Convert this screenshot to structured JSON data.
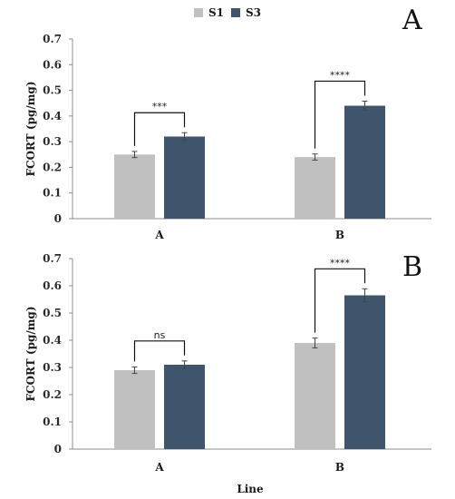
{
  "legend": {
    "items": [
      {
        "label": "S1",
        "color": "#c0c0c0"
      },
      {
        "label": "S3",
        "color": "#3f556c"
      }
    ]
  },
  "x_axis_title": "Line",
  "chart_data": [
    {
      "type": "bar",
      "panel_label": "A",
      "ylabel": "FCORT (pg/mg)",
      "xlabel": "",
      "ylim": [
        0,
        0.7
      ],
      "yticks": [
        "0",
        "0.1",
        "0.2",
        "0.3",
        "0.4",
        "0.5",
        "0.6",
        "0.7"
      ],
      "categories": [
        "A",
        "B"
      ],
      "series": [
        {
          "name": "S1",
          "color": "#c0c0c0",
          "values": [
            0.25,
            0.24
          ],
          "errors": [
            0.012,
            0.012
          ]
        },
        {
          "name": "S3",
          "color": "#3f556c",
          "values": [
            0.32,
            0.44
          ],
          "errors": [
            0.015,
            0.018
          ]
        }
      ],
      "significance": [
        "***",
        "****"
      ],
      "grid": false
    },
    {
      "type": "bar",
      "panel_label": "B",
      "ylabel": "FCORT (pg/mg)",
      "xlabel": "Line",
      "ylim": [
        0,
        0.7
      ],
      "yticks": [
        "0",
        "0.1",
        "0.2",
        "0.3",
        "0.4",
        "0.5",
        "0.6",
        "0.7"
      ],
      "categories": [
        "A",
        "B"
      ],
      "series": [
        {
          "name": "S1",
          "color": "#c0c0c0",
          "values": [
            0.29,
            0.39
          ],
          "errors": [
            0.012,
            0.018
          ]
        },
        {
          "name": "S3",
          "color": "#3f556c",
          "values": [
            0.31,
            0.565
          ],
          "errors": [
            0.014,
            0.024
          ]
        }
      ],
      "significance": [
        "ns",
        "****"
      ],
      "grid": false
    }
  ]
}
